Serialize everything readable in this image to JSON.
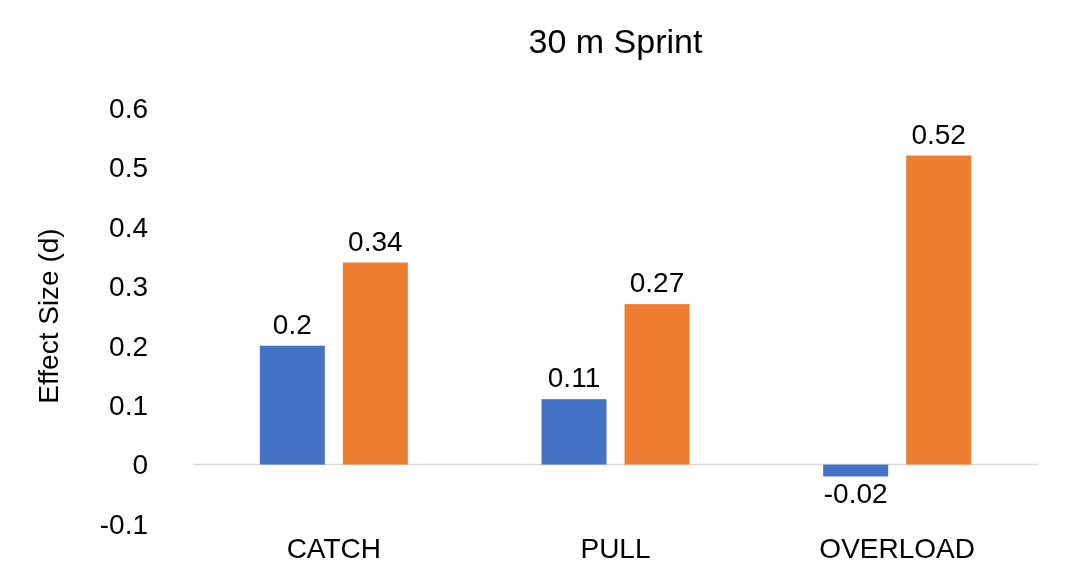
{
  "chart_data": {
    "type": "bar",
    "title": "30 m Sprint",
    "ylabel": "Effect Size (d)",
    "categories": [
      "CATCH",
      "PULL",
      "OVERLOAD"
    ],
    "series": [
      {
        "color": "#4472c4",
        "values": [
          0.2,
          0.11,
          -0.02
        ]
      },
      {
        "color": "#ed7d31",
        "values": [
          0.34,
          0.27,
          0.52
        ]
      }
    ],
    "ylim": [
      -0.1,
      0.6
    ],
    "yticks": [
      -0.1,
      0,
      0.1,
      0.2,
      0.3,
      0.4,
      0.5,
      0.6
    ],
    "data_labels": true,
    "grid": false
  }
}
